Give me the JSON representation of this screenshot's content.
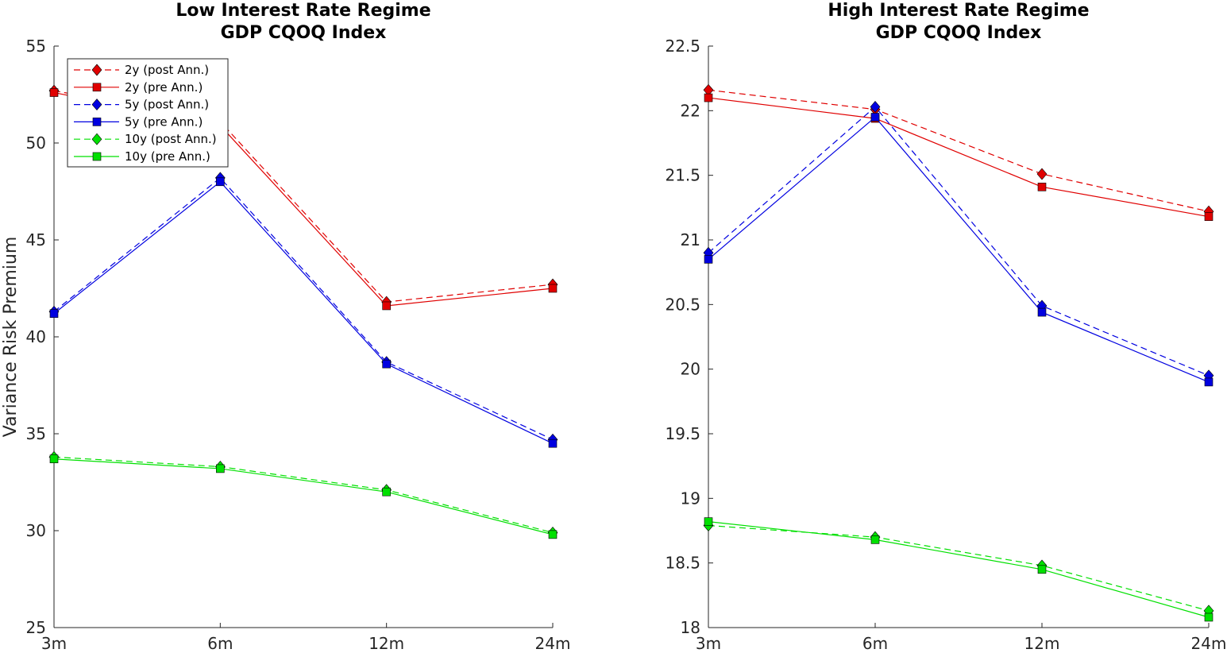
{
  "chart_data": [
    {
      "type": "line",
      "title": [
        "Low Interest Rate Regime",
        "GDP CQOQ Index"
      ],
      "xlabel": "",
      "ylabel": "Variance Risk Premium",
      "categories": [
        "3m",
        "6m",
        "12m",
        "24m"
      ],
      "ylim": [
        25,
        55
      ],
      "yticks": [
        25,
        30,
        35,
        40,
        45,
        50,
        55
      ],
      "grid": false,
      "legend": {
        "placement": "top-left"
      },
      "series": [
        {
          "name": "2y (post Ann.)",
          "color": "#e00000",
          "style": "dashed",
          "marker": "diamond",
          "values": [
            52.7,
            51.1,
            41.8,
            42.7
          ]
        },
        {
          "name": "2y (pre Ann.)",
          "color": "#e00000",
          "style": "solid",
          "marker": "square",
          "values": [
            52.6,
            50.9,
            41.6,
            42.5
          ]
        },
        {
          "name": "5y (post Ann.)",
          "color": "#0000e0",
          "style": "dashed",
          "marker": "diamond",
          "values": [
            41.3,
            48.2,
            38.7,
            34.7
          ]
        },
        {
          "name": "5y (pre Ann.)",
          "color": "#0000e0",
          "style": "solid",
          "marker": "square",
          "values": [
            41.2,
            48.0,
            38.6,
            34.5
          ]
        },
        {
          "name": "10y (post Ann.)",
          "color": "#00e000",
          "style": "dashed",
          "marker": "diamond",
          "values": [
            33.8,
            33.3,
            32.1,
            29.9
          ]
        },
        {
          "name": "10y (pre Ann.)",
          "color": "#00e000",
          "style": "solid",
          "marker": "square",
          "values": [
            33.7,
            33.2,
            32.0,
            29.8
          ]
        }
      ]
    },
    {
      "type": "line",
      "title": [
        "High Interest Rate Regime",
        "GDP CQOQ Index"
      ],
      "xlabel": "",
      "ylabel": "",
      "categories": [
        "3m",
        "6m",
        "12m",
        "24m"
      ],
      "ylim": [
        18,
        22.5
      ],
      "yticks": [
        18,
        18.5,
        19,
        19.5,
        20,
        20.5,
        21,
        21.5,
        22,
        22.5
      ],
      "grid": false,
      "series": [
        {
          "name": "2y (post Ann.)",
          "color": "#e00000",
          "style": "dashed",
          "marker": "diamond",
          "values": [
            22.16,
            22.01,
            21.51,
            21.22
          ]
        },
        {
          "name": "2y (pre Ann.)",
          "color": "#e00000",
          "style": "solid",
          "marker": "square",
          "values": [
            22.1,
            21.94,
            21.41,
            21.18
          ]
        },
        {
          "name": "5y (post Ann.)",
          "color": "#0000e0",
          "style": "dashed",
          "marker": "diamond",
          "values": [
            20.9,
            22.03,
            20.49,
            19.95
          ]
        },
        {
          "name": "5y (pre Ann.)",
          "color": "#0000e0",
          "style": "solid",
          "marker": "square",
          "values": [
            20.85,
            21.95,
            20.44,
            19.9
          ]
        },
        {
          "name": "10y (post Ann.)",
          "color": "#00e000",
          "style": "dashed",
          "marker": "diamond",
          "values": [
            18.79,
            18.7,
            18.48,
            18.13
          ]
        },
        {
          "name": "10y (pre Ann.)",
          "color": "#00e000",
          "style": "solid",
          "marker": "square",
          "values": [
            18.82,
            18.68,
            18.45,
            18.08
          ]
        }
      ]
    }
  ]
}
